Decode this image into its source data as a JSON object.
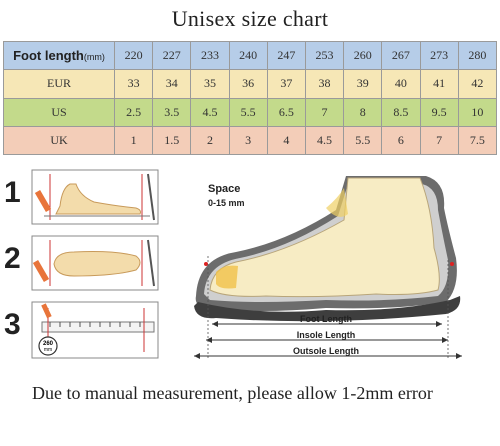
{
  "title": "Unisex size chart",
  "table": {
    "foot_length": {
      "label": "Foot length",
      "unit": "(mm)",
      "values": [
        "220",
        "227",
        "233",
        "240",
        "247",
        "253",
        "260",
        "267",
        "273",
        "280"
      ]
    },
    "eur": {
      "label": "EUR",
      "values": [
        "33",
        "34",
        "35",
        "36",
        "37",
        "38",
        "39",
        "40",
        "41",
        "42"
      ]
    },
    "us": {
      "label": "US",
      "values": [
        "2.5",
        "3.5",
        "4.5",
        "5.5",
        "6.5",
        "7",
        "8",
        "8.5",
        "9.5",
        "10"
      ]
    },
    "uk": {
      "label": "UK",
      "values": [
        "1",
        "1.5",
        "2",
        "3",
        "4",
        "4.5",
        "5.5",
        "6",
        "7",
        "7.5"
      ]
    }
  },
  "steps": [
    "1",
    "2",
    "3"
  ],
  "ruler_badge": "260\nmm",
  "diagram": {
    "space_label": "Space",
    "space_range": "0-15 mm",
    "foot_length_label": "Foot Length",
    "insole_length_label": "Insole Length",
    "outsole_length_label": "Outsole Length"
  },
  "note": "Due to manual measurement, please allow 1-2mm error",
  "colors": {
    "header": "#b6cde8",
    "eur": "#f6e7b6",
    "us": "#c3da8b",
    "uk": "#f3cdb8",
    "foot": "#f3dcab",
    "shoe": "#555555"
  }
}
